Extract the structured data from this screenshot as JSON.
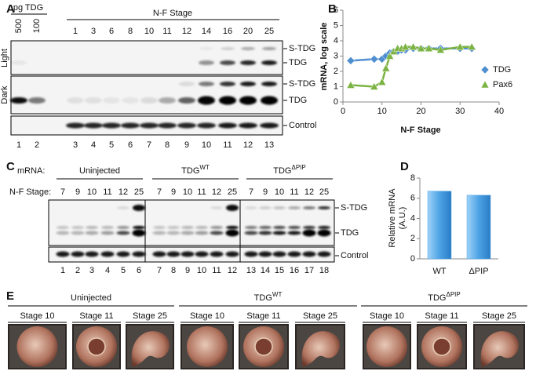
{
  "panel_a": {
    "label": "A",
    "pg_header": "pg TDG",
    "stage_header": "N-F Stage",
    "lanes": [
      "500",
      "100",
      "1",
      "3",
      "6",
      "8",
      "10",
      "11",
      "12",
      "14",
      "16",
      "20",
      "25"
    ],
    "row_labels": [
      "Light",
      "Dark"
    ],
    "band_labels": [
      "S-TDG",
      "TDG",
      "S-TDG",
      "TDG",
      "Control"
    ],
    "lane_numbers": [
      "1",
      "2",
      "3",
      "4",
      "5",
      "6",
      "7",
      "8",
      "9",
      "10",
      "11",
      "12",
      "13"
    ]
  },
  "chart_data": [
    {
      "label": "B",
      "type": "line",
      "x": [
        2,
        8,
        10,
        11,
        12,
        13,
        14,
        15,
        16,
        18,
        20,
        22,
        25,
        30,
        33
      ],
      "series": [
        {
          "name": "TDG",
          "color": "#4f8fd0",
          "marker": "diamond",
          "values": [
            2.7,
            2.8,
            2.8,
            3.0,
            3.2,
            3.3,
            3.3,
            3.4,
            3.4,
            3.5,
            3.5,
            3.5,
            3.5,
            3.5,
            3.5
          ]
        },
        {
          "name": "Pax6",
          "color": "#7cb342",
          "marker": "triangle",
          "values": [
            1.1,
            1.0,
            1.3,
            2.2,
            3.0,
            3.3,
            3.5,
            3.5,
            3.6,
            3.6,
            3.5,
            3.5,
            3.4,
            3.6,
            3.6
          ]
        }
      ],
      "xlabel": "N-F Stage",
      "ylabel": "mRNA, log scale",
      "xlim": [
        0,
        40
      ],
      "xticks": [
        0,
        10,
        20,
        30,
        40
      ],
      "ylim": [
        0,
        6
      ],
      "yticks": [
        0,
        1,
        2,
        3,
        4,
        5,
        6
      ],
      "legend": "right"
    },
    {
      "label": "D",
      "type": "bar",
      "categories": [
        "WT",
        "ΔPIP"
      ],
      "values": [
        6.7,
        6.3
      ],
      "color": "#4da3e6",
      "ylabel": [
        "Relative mRNA",
        "(A.U.)"
      ],
      "ylim": [
        0,
        8
      ],
      "yticks": [
        0,
        2,
        4,
        6,
        8
      ]
    }
  ],
  "panel_c": {
    "label": "C",
    "mrna_label": "mRNA:",
    "stage_label": "N-F Stage:",
    "groups": [
      {
        "name": "Uninjected"
      },
      {
        "name": "TDG",
        "sup": "WT"
      },
      {
        "name": "TDG",
        "sup": "ΔPIP"
      }
    ],
    "stages": [
      "7",
      "9",
      "10",
      "11",
      "12",
      "25"
    ],
    "band_labels": [
      "S-TDG",
      "TDG",
      "Control"
    ],
    "lane_numbers": [
      "1",
      "2",
      "3",
      "4",
      "5",
      "6",
      "7",
      "8",
      "9",
      "10",
      "11",
      "12",
      "13",
      "14",
      "15",
      "16",
      "17",
      "18"
    ]
  },
  "panel_e": {
    "label": "E",
    "groups": [
      {
        "name": "Uninjected"
      },
      {
        "name": "TDG",
        "sup": "WT"
      },
      {
        "name": "TDG",
        "sup": "ΔPIP"
      }
    ],
    "stages": [
      "Stage 10",
      "Stage 11",
      "Stage 25"
    ]
  }
}
